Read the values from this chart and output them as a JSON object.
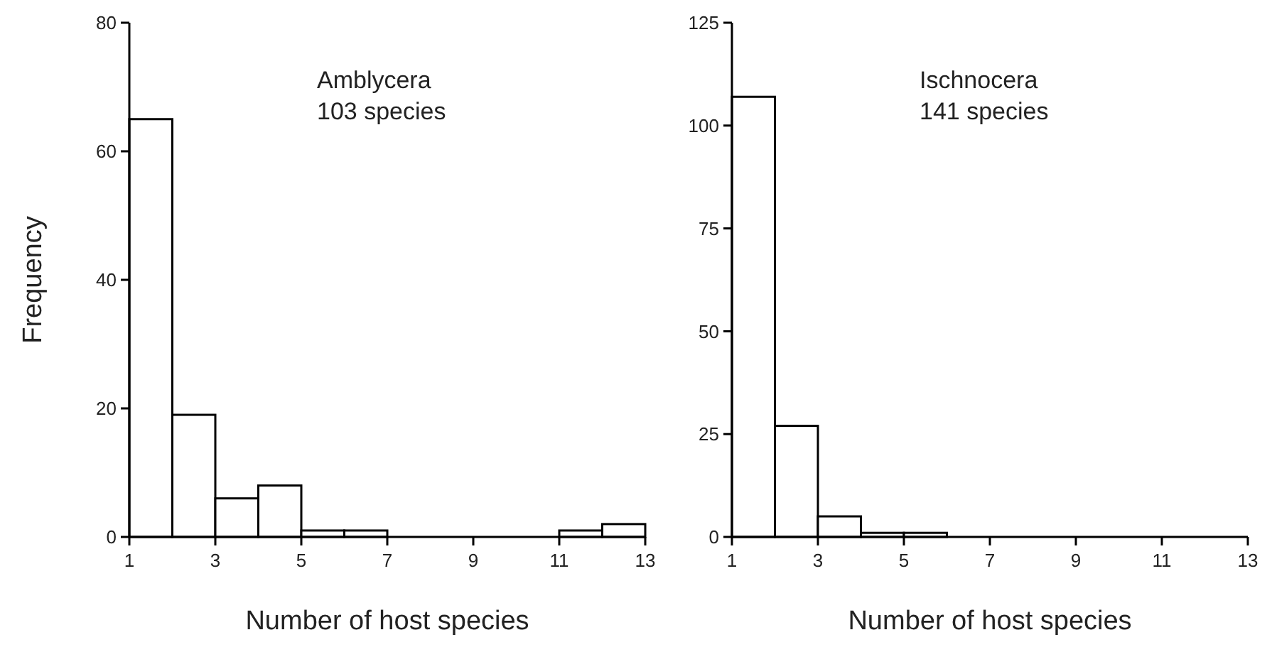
{
  "chart_data": [
    {
      "type": "histogram",
      "title": "Amblycera",
      "subtitle": "103 species",
      "xlabel": "Number of host species",
      "ylabel": "Frequency",
      "bins": [
        1,
        2,
        3,
        4,
        5,
        6,
        7,
        8,
        9,
        10,
        11,
        12,
        13
      ],
      "values": [
        65,
        19,
        6,
        8,
        1,
        1,
        0,
        0,
        0,
        0,
        1,
        2
      ],
      "color": "#ffffff",
      "xlim": [
        1,
        13
      ],
      "xticks": [
        1,
        3,
        5,
        7,
        9,
        11,
        13
      ],
      "ylim": [
        0,
        80
      ],
      "yticks": [
        0,
        20,
        40,
        60,
        80
      ],
      "grid": false
    },
    {
      "type": "histogram",
      "title": "Ischnocera",
      "subtitle": "141 species",
      "xlabel": "Number of host species",
      "bins": [
        1,
        2,
        3,
        4,
        5,
        6,
        7,
        8,
        9,
        10,
        11,
        12,
        13
      ],
      "values": [
        107,
        27,
        5,
        1,
        1,
        0,
        0,
        0,
        0,
        0,
        0,
        0
      ],
      "color": "#ffffff",
      "xlim": [
        1,
        13
      ],
      "xticks": [
        1,
        3,
        5,
        7,
        9,
        11,
        13
      ],
      "ylim": [
        0,
        125
      ],
      "yticks": [
        0,
        25,
        50,
        75,
        100,
        125
      ],
      "grid": false
    }
  ]
}
